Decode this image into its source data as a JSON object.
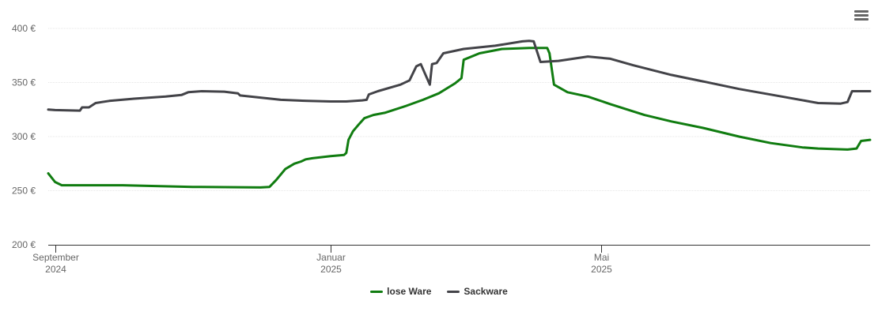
{
  "chart_data": {
    "type": "line",
    "title": "",
    "xlabel": "",
    "ylabel": "",
    "ylim": [
      200,
      400
    ],
    "xlim": [
      "2024-08-29",
      "2025-08-28"
    ],
    "y_ticks": [
      {
        "value": 200,
        "label": "200 €"
      },
      {
        "value": 250,
        "label": "250 €"
      },
      {
        "value": 300,
        "label": "300 €"
      },
      {
        "value": 350,
        "label": "350 €"
      },
      {
        "value": 400,
        "label": "400 €"
      }
    ],
    "x_ticks": [
      {
        "date": "2024-09-01",
        "label": "September",
        "sublabel": "2024"
      },
      {
        "date": "2025-01-01",
        "label": "Januar",
        "sublabel": "2025"
      },
      {
        "date": "2025-05-01",
        "label": "Mai",
        "sublabel": "2025"
      }
    ],
    "grid": true,
    "legend_position": "bottom-center",
    "series": [
      {
        "name": "lose Ware",
        "color": "#107c10",
        "points": [
          [
            "2024-08-29",
            266
          ],
          [
            "2024-09-01",
            258
          ],
          [
            "2024-09-04",
            255
          ],
          [
            "2024-10-01",
            255
          ],
          [
            "2024-11-01",
            253.5
          ],
          [
            "2024-12-01",
            253
          ],
          [
            "2024-12-05",
            253.5
          ],
          [
            "2024-12-08",
            260
          ],
          [
            "2024-12-12",
            270
          ],
          [
            "2024-12-16",
            275
          ],
          [
            "2024-12-19",
            277
          ],
          [
            "2024-12-21",
            279
          ],
          [
            "2024-12-24",
            280
          ],
          [
            "2025-01-01",
            282
          ],
          [
            "2025-01-07",
            283
          ],
          [
            "2025-01-08",
            285
          ],
          [
            "2025-01-09",
            297
          ],
          [
            "2025-01-11",
            305
          ],
          [
            "2025-01-13",
            310
          ],
          [
            "2025-01-16",
            317
          ],
          [
            "2025-01-20",
            320
          ],
          [
            "2025-01-25",
            322
          ],
          [
            "2025-02-03",
            328
          ],
          [
            "2025-02-11",
            334
          ],
          [
            "2025-02-18",
            340
          ],
          [
            "2025-02-25",
            349
          ],
          [
            "2025-02-28",
            354
          ],
          [
            "2025-03-01",
            371
          ],
          [
            "2025-03-08",
            377
          ],
          [
            "2025-03-18",
            381
          ],
          [
            "2025-03-30",
            382
          ],
          [
            "2025-04-07",
            382
          ],
          [
            "2025-04-08",
            377
          ],
          [
            "2025-04-10",
            348
          ],
          [
            "2025-04-16",
            341
          ],
          [
            "2025-04-25",
            337
          ],
          [
            "2025-05-05",
            330
          ],
          [
            "2025-05-20",
            320
          ],
          [
            "2025-06-01",
            314
          ],
          [
            "2025-06-15",
            308
          ],
          [
            "2025-07-01",
            300
          ],
          [
            "2025-07-15",
            294
          ],
          [
            "2025-07-29",
            290
          ],
          [
            "2025-08-05",
            289
          ],
          [
            "2025-08-18",
            288
          ],
          [
            "2025-08-22",
            289
          ],
          [
            "2025-08-24",
            296
          ],
          [
            "2025-08-28",
            297
          ]
        ]
      },
      {
        "name": "Sackware",
        "color": "#434348",
        "points": [
          [
            "2024-08-29",
            325
          ],
          [
            "2024-09-01",
            324.5
          ],
          [
            "2024-09-12",
            324
          ],
          [
            "2024-09-13",
            327
          ],
          [
            "2024-09-16",
            327
          ],
          [
            "2024-09-19",
            331
          ],
          [
            "2024-09-25",
            333
          ],
          [
            "2024-10-06",
            335
          ],
          [
            "2024-10-20",
            337
          ],
          [
            "2024-10-27",
            338.5
          ],
          [
            "2024-10-30",
            341
          ],
          [
            "2024-11-05",
            342
          ],
          [
            "2024-11-15",
            341.5
          ],
          [
            "2024-11-21",
            340
          ],
          [
            "2024-11-22",
            338
          ],
          [
            "2024-12-10",
            334
          ],
          [
            "2024-12-22",
            333
          ],
          [
            "2025-01-01",
            332.5
          ],
          [
            "2025-01-08",
            332.5
          ],
          [
            "2025-01-15",
            333.5
          ],
          [
            "2025-01-17",
            334
          ],
          [
            "2025-01-18",
            339
          ],
          [
            "2025-01-22",
            342
          ],
          [
            "2025-02-01",
            348
          ],
          [
            "2025-02-05",
            352
          ],
          [
            "2025-02-08",
            365
          ],
          [
            "2025-02-10",
            367
          ],
          [
            "2025-02-14",
            348
          ],
          [
            "2025-02-15",
            367
          ],
          [
            "2025-02-17",
            368
          ],
          [
            "2025-02-20",
            377
          ],
          [
            "2025-03-01",
            381
          ],
          [
            "2025-03-15",
            384
          ],
          [
            "2025-03-27",
            388
          ],
          [
            "2025-03-30",
            388.5
          ],
          [
            "2025-04-01",
            388
          ],
          [
            "2025-04-04",
            369
          ],
          [
            "2025-04-12",
            370
          ],
          [
            "2025-04-25",
            374
          ],
          [
            "2025-05-05",
            372
          ],
          [
            "2025-05-15",
            366
          ],
          [
            "2025-06-01",
            357
          ],
          [
            "2025-06-15",
            351
          ],
          [
            "2025-07-01",
            344
          ],
          [
            "2025-07-20",
            337
          ],
          [
            "2025-08-05",
            331
          ],
          [
            "2025-08-15",
            330.5
          ],
          [
            "2025-08-18",
            332
          ],
          [
            "2025-08-20",
            342
          ],
          [
            "2025-08-28",
            342
          ]
        ]
      }
    ]
  },
  "menu": {
    "icon": "hamburger-menu-icon"
  }
}
